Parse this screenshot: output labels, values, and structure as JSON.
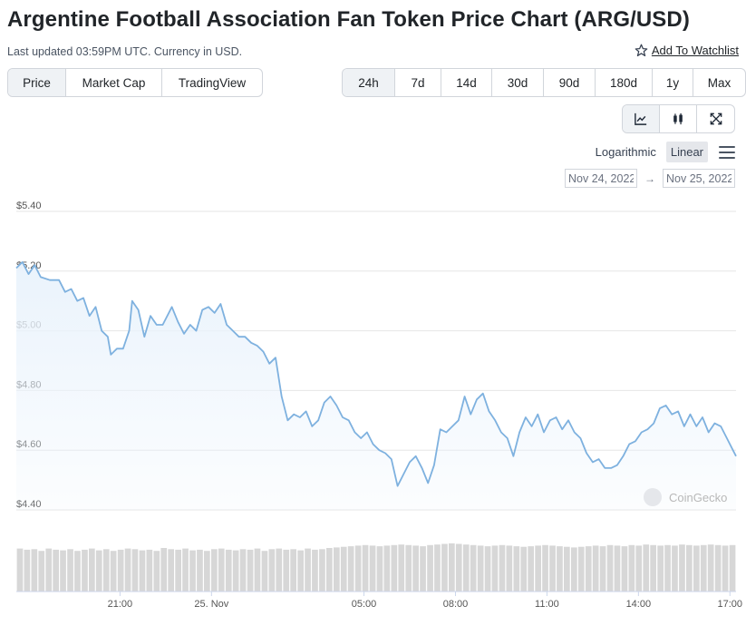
{
  "header": {
    "title": "Argentine Football Association Fan Token Price Chart (ARG/USD)",
    "subtitle": "Last updated 03:59PM UTC. Currency in USD.",
    "watchlist_label": "Add To Watchlist"
  },
  "view_tabs": [
    {
      "label": "Price",
      "active": true
    },
    {
      "label": "Market Cap",
      "active": false
    },
    {
      "label": "TradingView",
      "active": false
    }
  ],
  "range_tabs": [
    {
      "label": "24h",
      "active": true
    },
    {
      "label": "7d",
      "active": false
    },
    {
      "label": "14d",
      "active": false
    },
    {
      "label": "30d",
      "active": false
    },
    {
      "label": "90d",
      "active": false
    },
    {
      "label": "180d",
      "active": false
    },
    {
      "label": "1y",
      "active": false
    },
    {
      "label": "Max",
      "active": false
    }
  ],
  "chart_type_icons": [
    "line-chart-icon",
    "candlestick-icon",
    "fullscreen-icon"
  ],
  "scale": {
    "logarithmic": "Logarithmic",
    "linear": "Linear",
    "active": "linear"
  },
  "date_range": {
    "from": "Nov 24, 2022",
    "to": "Nov 25, 2022",
    "arrow": "→"
  },
  "watermark": "CoinGecko",
  "colors": {
    "line": "#7eb1df",
    "fill": "#eaf3fc",
    "volume": "#d7d7d7",
    "accent_bg": "#eff2f5"
  },
  "chart_data": {
    "type": "area",
    "title": "",
    "xlabel": "",
    "ylabel": "",
    "ylim": [
      4.4,
      5.4
    ],
    "y_ticks": [
      {
        "value": 5.4,
        "label": "$5.40"
      },
      {
        "value": 5.2,
        "label": "$5.20"
      },
      {
        "value": 5.0,
        "label": "$5.00"
      },
      {
        "value": 4.8,
        "label": "$4.80"
      },
      {
        "value": 4.6,
        "label": "$4.60"
      },
      {
        "value": 4.4,
        "label": "$4.40"
      }
    ],
    "x_range_hours": [
      -6.4,
      17.2
    ],
    "x_ticks": [
      {
        "hour": -3,
        "label": "21:00"
      },
      {
        "hour": 0,
        "label": "25. Nov"
      },
      {
        "hour": 5,
        "label": "05:00"
      },
      {
        "hour": 8,
        "label": "08:00"
      },
      {
        "hour": 11,
        "label": "11:00"
      },
      {
        "hour": 14,
        "label": "14:00"
      },
      {
        "hour": 17,
        "label": "17:00"
      }
    ],
    "series": [
      {
        "name": "",
        "points": [
          [
            -6.4,
            5.21
          ],
          [
            -6.2,
            5.23
          ],
          [
            -6.0,
            5.19
          ],
          [
            -5.8,
            5.22
          ],
          [
            -5.6,
            5.18
          ],
          [
            -5.3,
            5.17
          ],
          [
            -5.0,
            5.17
          ],
          [
            -4.8,
            5.13
          ],
          [
            -4.6,
            5.14
          ],
          [
            -4.4,
            5.1
          ],
          [
            -4.2,
            5.11
          ],
          [
            -4.0,
            5.05
          ],
          [
            -3.8,
            5.08
          ],
          [
            -3.6,
            5.0
          ],
          [
            -3.4,
            4.98
          ],
          [
            -3.3,
            4.92
          ],
          [
            -3.1,
            4.94
          ],
          [
            -2.9,
            4.94
          ],
          [
            -2.7,
            5.0
          ],
          [
            -2.6,
            5.1
          ],
          [
            -2.4,
            5.07
          ],
          [
            -2.2,
            4.98
          ],
          [
            -2.0,
            5.05
          ],
          [
            -1.8,
            5.02
          ],
          [
            -1.6,
            5.02
          ],
          [
            -1.3,
            5.08
          ],
          [
            -1.1,
            5.03
          ],
          [
            -0.9,
            4.99
          ],
          [
            -0.7,
            5.02
          ],
          [
            -0.5,
            5.0
          ],
          [
            -0.3,
            5.07
          ],
          [
            -0.1,
            5.08
          ],
          [
            0.1,
            5.06
          ],
          [
            0.3,
            5.09
          ],
          [
            0.5,
            5.02
          ],
          [
            0.7,
            5.0
          ],
          [
            0.9,
            4.98
          ],
          [
            1.1,
            4.98
          ],
          [
            1.3,
            4.96
          ],
          [
            1.5,
            4.95
          ],
          [
            1.7,
            4.93
          ],
          [
            1.9,
            4.89
          ],
          [
            2.1,
            4.91
          ],
          [
            2.3,
            4.78
          ],
          [
            2.5,
            4.7
          ],
          [
            2.7,
            4.72
          ],
          [
            2.9,
            4.71
          ],
          [
            3.1,
            4.73
          ],
          [
            3.3,
            4.68
          ],
          [
            3.5,
            4.7
          ],
          [
            3.7,
            4.76
          ],
          [
            3.9,
            4.78
          ],
          [
            4.1,
            4.75
          ],
          [
            4.3,
            4.71
          ],
          [
            4.5,
            4.7
          ],
          [
            4.7,
            4.66
          ],
          [
            4.9,
            4.64
          ],
          [
            5.1,
            4.66
          ],
          [
            5.3,
            4.62
          ],
          [
            5.5,
            4.6
          ],
          [
            5.7,
            4.59
          ],
          [
            5.9,
            4.57
          ],
          [
            6.1,
            4.48
          ],
          [
            6.3,
            4.52
          ],
          [
            6.5,
            4.56
          ],
          [
            6.7,
            4.58
          ],
          [
            6.9,
            4.54
          ],
          [
            7.1,
            4.49
          ],
          [
            7.3,
            4.55
          ],
          [
            7.5,
            4.67
          ],
          [
            7.7,
            4.66
          ],
          [
            7.9,
            4.68
          ],
          [
            8.1,
            4.7
          ],
          [
            8.3,
            4.78
          ],
          [
            8.5,
            4.72
          ],
          [
            8.7,
            4.77
          ],
          [
            8.9,
            4.79
          ],
          [
            9.1,
            4.73
          ],
          [
            9.3,
            4.7
          ],
          [
            9.5,
            4.66
          ],
          [
            9.7,
            4.64
          ],
          [
            9.9,
            4.58
          ],
          [
            10.1,
            4.66
          ],
          [
            10.3,
            4.71
          ],
          [
            10.5,
            4.68
          ],
          [
            10.7,
            4.72
          ],
          [
            10.9,
            4.66
          ],
          [
            11.1,
            4.7
          ],
          [
            11.3,
            4.71
          ],
          [
            11.5,
            4.67
          ],
          [
            11.7,
            4.7
          ],
          [
            11.9,
            4.66
          ],
          [
            12.1,
            4.64
          ],
          [
            12.3,
            4.59
          ],
          [
            12.5,
            4.56
          ],
          [
            12.7,
            4.57
          ],
          [
            12.9,
            4.54
          ],
          [
            13.1,
            4.54
          ],
          [
            13.3,
            4.55
          ],
          [
            13.5,
            4.58
          ],
          [
            13.7,
            4.62
          ],
          [
            13.9,
            4.63
          ],
          [
            14.1,
            4.66
          ],
          [
            14.3,
            4.67
          ],
          [
            14.5,
            4.69
          ],
          [
            14.7,
            4.74
          ],
          [
            14.9,
            4.75
          ],
          [
            15.1,
            4.72
          ],
          [
            15.3,
            4.73
          ],
          [
            15.5,
            4.68
          ],
          [
            15.7,
            4.72
          ],
          [
            15.9,
            4.68
          ],
          [
            16.1,
            4.71
          ],
          [
            16.3,
            4.66
          ],
          [
            16.5,
            4.69
          ],
          [
            16.7,
            4.68
          ],
          [
            16.9,
            4.64
          ],
          [
            17.1,
            4.6
          ],
          [
            17.2,
            4.58
          ]
        ]
      }
    ],
    "volume": {
      "shown": true,
      "relative_heights": [
        0.74,
        0.72,
        0.73,
        0.7,
        0.74,
        0.72,
        0.71,
        0.73,
        0.7,
        0.72,
        0.74,
        0.71,
        0.73,
        0.7,
        0.72,
        0.74,
        0.73,
        0.71,
        0.72,
        0.7,
        0.75,
        0.73,
        0.72,
        0.74,
        0.71,
        0.72,
        0.7,
        0.73,
        0.74,
        0.72,
        0.71,
        0.73,
        0.72,
        0.74,
        0.7,
        0.73,
        0.74,
        0.72,
        0.73,
        0.71,
        0.74,
        0.72,
        0.73,
        0.75,
        0.76,
        0.77,
        0.78,
        0.79,
        0.8,
        0.79,
        0.78,
        0.79,
        0.8,
        0.81,
        0.8,
        0.79,
        0.78,
        0.8,
        0.81,
        0.82,
        0.83,
        0.82,
        0.81,
        0.8,
        0.79,
        0.78,
        0.79,
        0.8,
        0.79,
        0.78,
        0.77,
        0.78,
        0.79,
        0.8,
        0.79,
        0.78,
        0.77,
        0.76,
        0.77,
        0.78,
        0.79,
        0.78,
        0.8,
        0.79,
        0.78,
        0.8,
        0.79,
        0.81,
        0.8,
        0.79,
        0.8,
        0.79,
        0.81,
        0.8,
        0.79,
        0.8,
        0.81,
        0.8,
        0.79,
        0.8
      ]
    },
    "grid": true
  }
}
